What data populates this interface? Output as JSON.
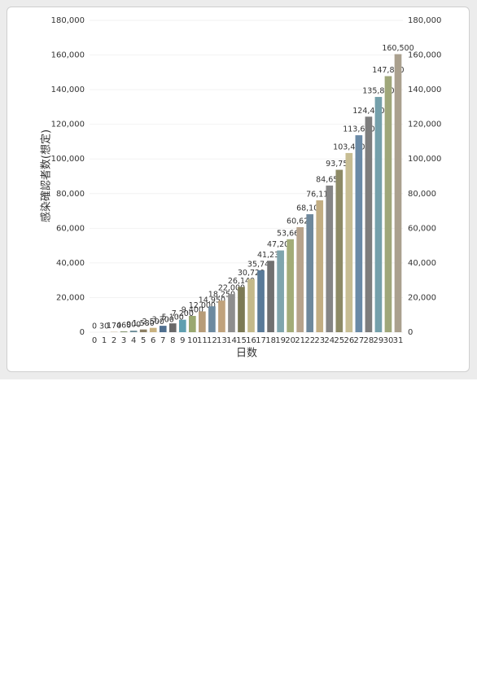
{
  "chart_data": {
    "type": "bar",
    "y_label": "感染確認者数(想定)",
    "x_label": "日数",
    "categories": [
      "0",
      "1",
      "2",
      "3",
      "4",
      "5",
      "6",
      "7",
      "8",
      "9",
      "10",
      "11",
      "12",
      "13",
      "14",
      "15",
      "16",
      "17",
      "18",
      "19",
      "20",
      "21",
      "22",
      "23",
      "24",
      "25",
      "26",
      "27",
      "28",
      "29",
      "30",
      "31"
    ],
    "values": [
      0,
      30,
      170,
      460,
      900,
      1580,
      2500,
      3700,
      5100,
      7200,
      9400,
      12000,
      14950,
      18250,
      22000,
      26140,
      30720,
      35740,
      41230,
      47200,
      53660,
      60620,
      68100,
      76110,
      84650,
      93750,
      103430,
      113690,
      124400,
      135800,
      147800,
      160500
    ],
    "value_labels": [
      "0",
      "30",
      "170",
      "460",
      "900",
      "1,580",
      "2,500",
      "3,700",
      "5,100",
      "7,200",
      "9,400",
      "12,000",
      "14,950",
      "18,250",
      "22,000",
      "26,140",
      "30,720",
      "35,740",
      "41,230",
      "47,200",
      "53,660",
      "60,620",
      "68,100",
      "76,110",
      "84,650",
      "93,750",
      "103,430",
      "113,690",
      "124,400",
      "135,800",
      "147,800",
      "160,500"
    ],
    "colors": [
      "#6b8fa8",
      "#8a9a6b",
      "#b8a27a",
      "#7d8f6a",
      "#6f8f9a",
      "#8b7f62",
      "#c9b27f",
      "#4f6f8f",
      "#6a6a6a",
      "#5f9fb0",
      "#9aa870",
      "#b79c78",
      "#6d8aa0",
      "#c0a27c",
      "#8e8e8e",
      "#7c7a55",
      "#c4b98a",
      "#597a98",
      "#707070",
      "#7fa5ad",
      "#a3ac78",
      "#b7a38c",
      "#6e889c",
      "#c2ad82",
      "#858585",
      "#8d8a66",
      "#c7bd93",
      "#6a8aa6",
      "#7d7d7d",
      "#74a0ab",
      "#9fa77a",
      "#aaa08e"
    ],
    "ylim": [
      0,
      180000
    ],
    "yticks": [
      0,
      {
        "value": 20000,
        "label": "20,000"
      },
      {
        "value": 40000,
        "label": "40,000"
      },
      {
        "value": 60000,
        "label": "60,000"
      },
      {
        "value": 80000,
        "label": "80,000"
      },
      {
        "value": 100000,
        "label": "100,000"
      },
      {
        "value": 120000,
        "label": "120,000"
      },
      {
        "value": 140000,
        "label": "140,000"
      },
      {
        "value": 160000,
        "label": "160,000"
      },
      {
        "value": 180000,
        "label": "180,000"
      }
    ]
  }
}
